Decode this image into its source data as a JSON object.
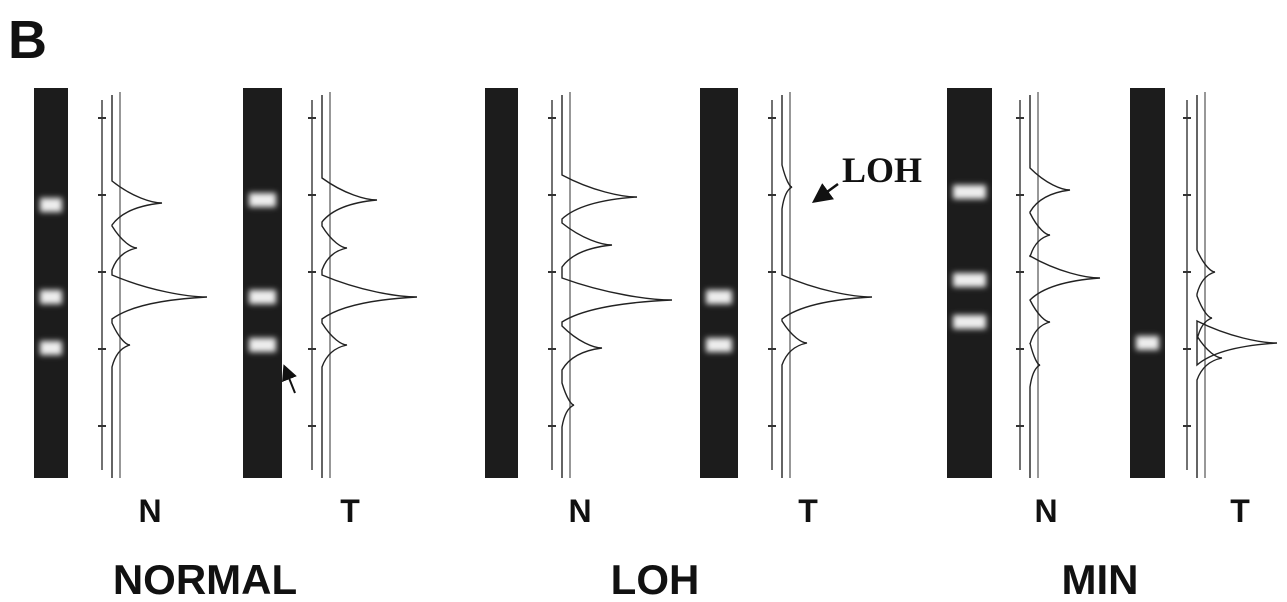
{
  "panel_label": "B",
  "annotation": "LOH",
  "groups": [
    {
      "title": "NORMAL",
      "lanes": [
        {
          "label": "N"
        },
        {
          "label": "T"
        }
      ]
    },
    {
      "title": "LOH",
      "lanes": [
        {
          "label": "N"
        },
        {
          "label": "T"
        }
      ]
    },
    {
      "title": "MIN",
      "lanes": [
        {
          "label": "N"
        },
        {
          "label": "T"
        }
      ]
    }
  ]
}
